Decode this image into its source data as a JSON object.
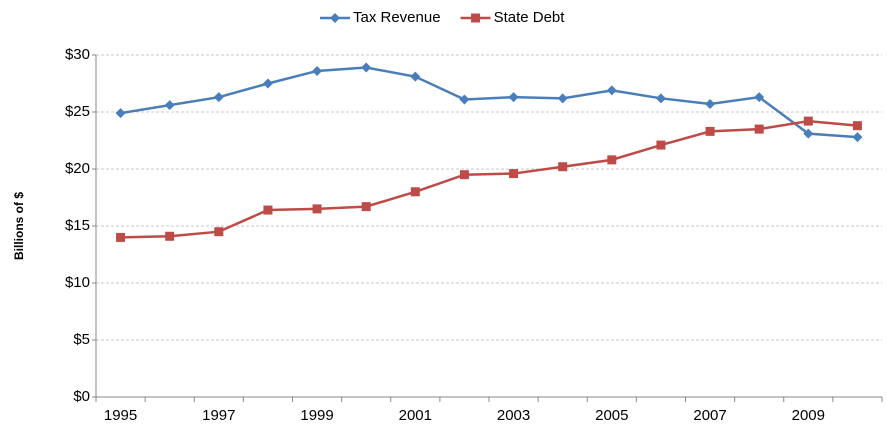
{
  "chart_data": {
    "type": "line",
    "y_label": "Billions of $",
    "categories": [
      "1995",
      null,
      "1997",
      null,
      "1999",
      null,
      "2001",
      null,
      "2003",
      null,
      "2005",
      null,
      "2007",
      null,
      "2009",
      null
    ],
    "series": [
      {
        "name": "Tax Revenue",
        "color": "#4a7ebb",
        "marker": "diamond",
        "values": [
          24.9,
          25.6,
          26.3,
          27.5,
          28.6,
          28.9,
          28.1,
          26.1,
          26.3,
          26.2,
          26.9,
          26.2,
          25.7,
          26.3,
          23.1,
          22.8
        ]
      },
      {
        "name": "State Debt",
        "color": "#be4b48",
        "marker": "square",
        "values": [
          14.0,
          14.1,
          14.5,
          16.4,
          16.5,
          16.7,
          18.0,
          19.5,
          19.6,
          20.2,
          20.8,
          22.1,
          23.3,
          23.5,
          24.2,
          23.8
        ]
      }
    ],
    "ylim": [
      0,
      30
    ],
    "yticks": [
      {
        "value": 0,
        "label": "$0"
      },
      {
        "value": 5,
        "label": "$5"
      },
      {
        "value": 10,
        "label": "$10"
      },
      {
        "value": 15,
        "label": "$15"
      },
      {
        "value": 20,
        "label": "$20"
      },
      {
        "value": 25,
        "label": "$25"
      },
      {
        "value": 30,
        "label": "$30"
      }
    ],
    "grid": true,
    "legend": "top"
  }
}
